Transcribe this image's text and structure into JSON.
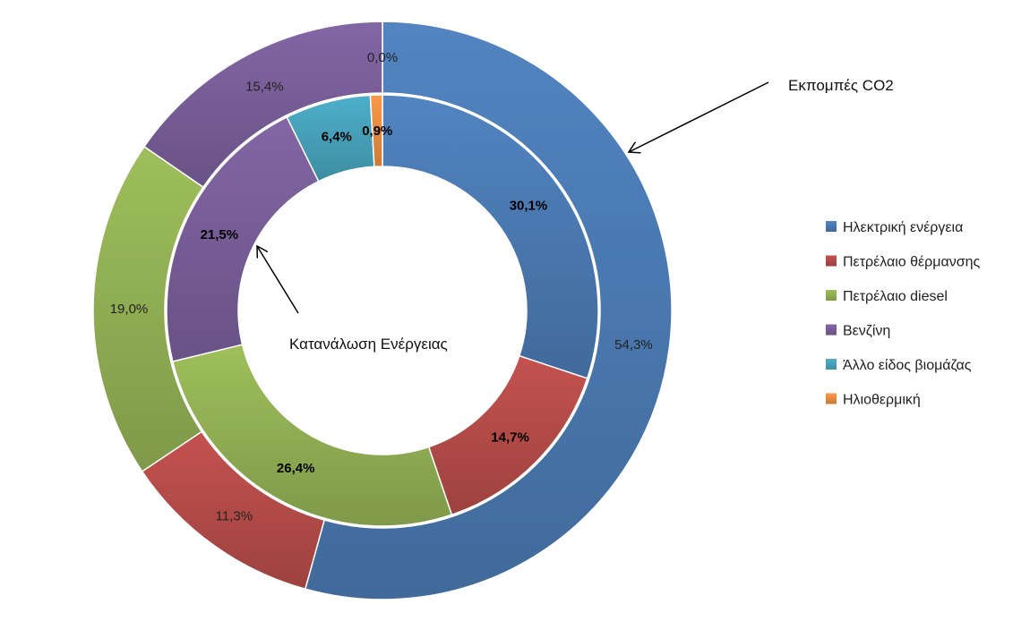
{
  "chart_data": {
    "type": "pie",
    "style": "nested-doughnut",
    "categories": [
      "Ηλεκτρική ενέργεια",
      "Πετρέλαιο θέρμανσης",
      "Πετρέλαιο diesel",
      "Βενζίνη",
      "Άλλο είδος βιομάζας",
      "Ηλιοθερμική"
    ],
    "colors": [
      "#4F81BD",
      "#C0504D",
      "#9BBB59",
      "#8064A2",
      "#4BACC6",
      "#F79646"
    ],
    "series": [
      {
        "name": "Κατανάλωση Ενέργειας",
        "ring": "inner",
        "values": [
          30.1,
          14.7,
          26.4,
          21.5,
          6.4,
          0.9
        ],
        "labels": [
          "30,1%",
          "14,7%",
          "26,4%",
          "21,5%",
          "6,4%",
          "0,9%"
        ]
      },
      {
        "name": "Εκπομπές CO2",
        "ring": "outer",
        "values": [
          54.3,
          11.3,
          19.0,
          15.4,
          0.0,
          0.0
        ],
        "labels": [
          "54,3%",
          "11,3%",
          "19,0%",
          "15,4%",
          "",
          "0,0%"
        ]
      }
    ],
    "legend_position": "right"
  }
}
